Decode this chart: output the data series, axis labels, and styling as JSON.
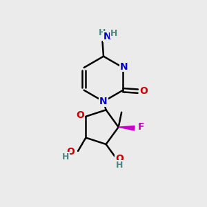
{
  "bg_color": "#ebebeb",
  "N_color": "#0000cc",
  "O_color": "#cc0000",
  "F_color": "#cc00cc",
  "H_color": "#4a8888",
  "C_color": "#000000",
  "bond_color": "#000000",
  "figsize": [
    3.0,
    3.0
  ],
  "dpi": 100,
  "xlim": [
    0,
    10
  ],
  "ylim": [
    0,
    10
  ],
  "lw": 1.8,
  "fs": 10
}
